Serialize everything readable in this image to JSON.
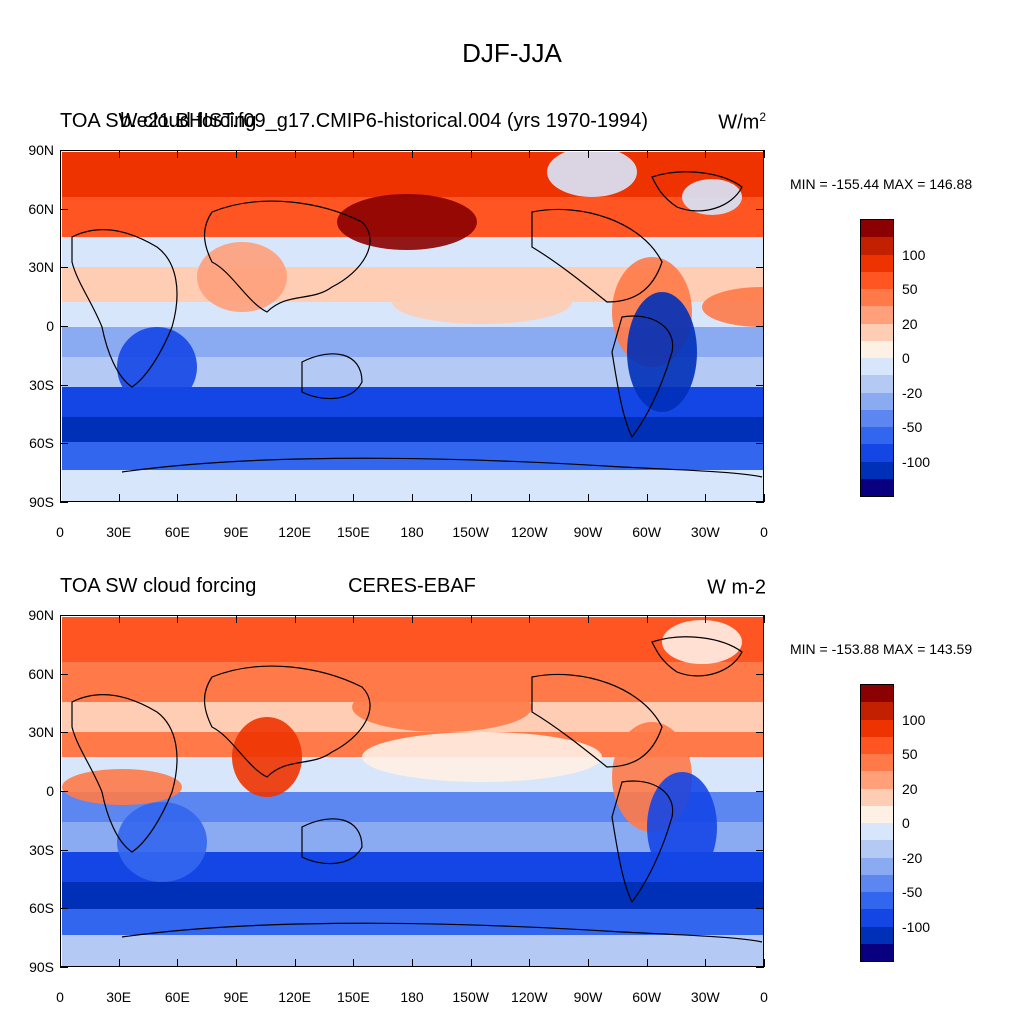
{
  "figure_title": "DJF-JJA",
  "palette": [
    "#08007f",
    "#0030b8",
    "#1446e6",
    "#3366ee",
    "#5c86f0",
    "#8aaaf2",
    "#b4caf5",
    "#d8e6fb",
    "#fff0e6",
    "#ffcdb4",
    "#ffa07a",
    "#ff7a48",
    "#ff5522",
    "#ee3300",
    "#c22000",
    "#8b0000"
  ],
  "colorbar_labels": [
    {
      "text": "100",
      "level": 100
    },
    {
      "text": "50",
      "level": 50
    },
    {
      "text": "20",
      "level": 20
    },
    {
      "text": "0",
      "level": 0
    },
    {
      "text": "-20",
      "level": -20
    },
    {
      "text": "-50",
      "level": -50
    },
    {
      "text": "-100",
      "level": -100
    }
  ],
  "axes": {
    "lat_labels": [
      "90N",
      "60N",
      "30N",
      "0",
      "30S",
      "60S",
      "90S"
    ],
    "lat_values": [
      90,
      60,
      30,
      0,
      -30,
      -60,
      -90
    ],
    "lon_labels": [
      "0",
      "30E",
      "60E",
      "90E",
      "120E",
      "150E",
      "180",
      "150W",
      "120W",
      "90W",
      "60W",
      "30W",
      "0"
    ],
    "lon_values": [
      0,
      30,
      60,
      90,
      120,
      150,
      180,
      210,
      240,
      270,
      300,
      330,
      360
    ]
  },
  "panels": [
    {
      "left_title": "TOA SW cloud forcing",
      "overlap_title": "b.e21.BHIST.f09_g17.CMIP6-historical.004 (yrs 1970-1994)",
      "center_title": "",
      "units_base": "W/m",
      "units_sup": "2",
      "min_max": "MIN = -155.44 MAX = 146.88"
    },
    {
      "left_title": "TOA SW cloud forcing",
      "overlap_title": "",
      "center_title": "CERES-EBAF",
      "units_base": "W m-2",
      "units_sup": "",
      "min_max": "MIN = -153.88 MAX = 143.59"
    }
  ]
}
